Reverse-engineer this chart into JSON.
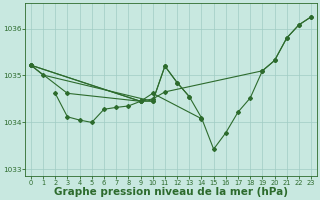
{
  "background_color": "#c8e8e0",
  "line_color": "#2d6b2d",
  "grid_color": "#a0ccc4",
  "xlabel": "Graphe pression niveau de la mer (hPa)",
  "xlabel_fontsize": 7.5,
  "tick_color": "#2d6b2d",
  "ylim": [
    1032.85,
    1036.55
  ],
  "xlim": [
    -0.5,
    23.5
  ],
  "yticks": [
    1033,
    1034,
    1035,
    1036
  ],
  "xticks": [
    0,
    1,
    2,
    3,
    4,
    5,
    6,
    7,
    8,
    9,
    10,
    11,
    12,
    13,
    14,
    15,
    16,
    17,
    18,
    19,
    20,
    21,
    22,
    23
  ],
  "lines": [
    {
      "x": [
        0,
        1,
        10,
        11,
        12,
        13,
        14,
        15,
        16,
        17,
        18,
        19,
        20,
        21,
        22,
        23
      ],
      "y": [
        1035.22,
        1035.01,
        1034.45,
        1035.2,
        1034.85,
        1034.55,
        1034.1,
        1033.43,
        1033.78,
        1034.22,
        1034.52,
        1035.1,
        1035.32,
        1035.8,
        1036.08,
        1036.25
      ]
    },
    {
      "x": [
        2,
        3,
        4,
        5,
        6,
        7,
        8,
        9
      ],
      "y": [
        1034.62,
        1034.12,
        1034.05,
        1034.0,
        1034.28,
        1034.32,
        1034.35,
        1034.45
      ]
    },
    {
      "x": [
        0,
        3,
        9,
        10,
        11,
        12,
        13
      ],
      "y": [
        1035.22,
        1034.62,
        1034.45,
        1034.45,
        1035.2,
        1034.85,
        1034.55
      ]
    },
    {
      "x": [
        0,
        9,
        10,
        11,
        19,
        20,
        21,
        22,
        23
      ],
      "y": [
        1035.22,
        1034.45,
        1034.5,
        1034.65,
        1035.1,
        1035.32,
        1035.8,
        1036.08,
        1036.25
      ]
    },
    {
      "x": [
        0,
        9,
        10,
        14
      ],
      "y": [
        1035.22,
        1034.45,
        1034.62,
        1034.08
      ]
    }
  ]
}
